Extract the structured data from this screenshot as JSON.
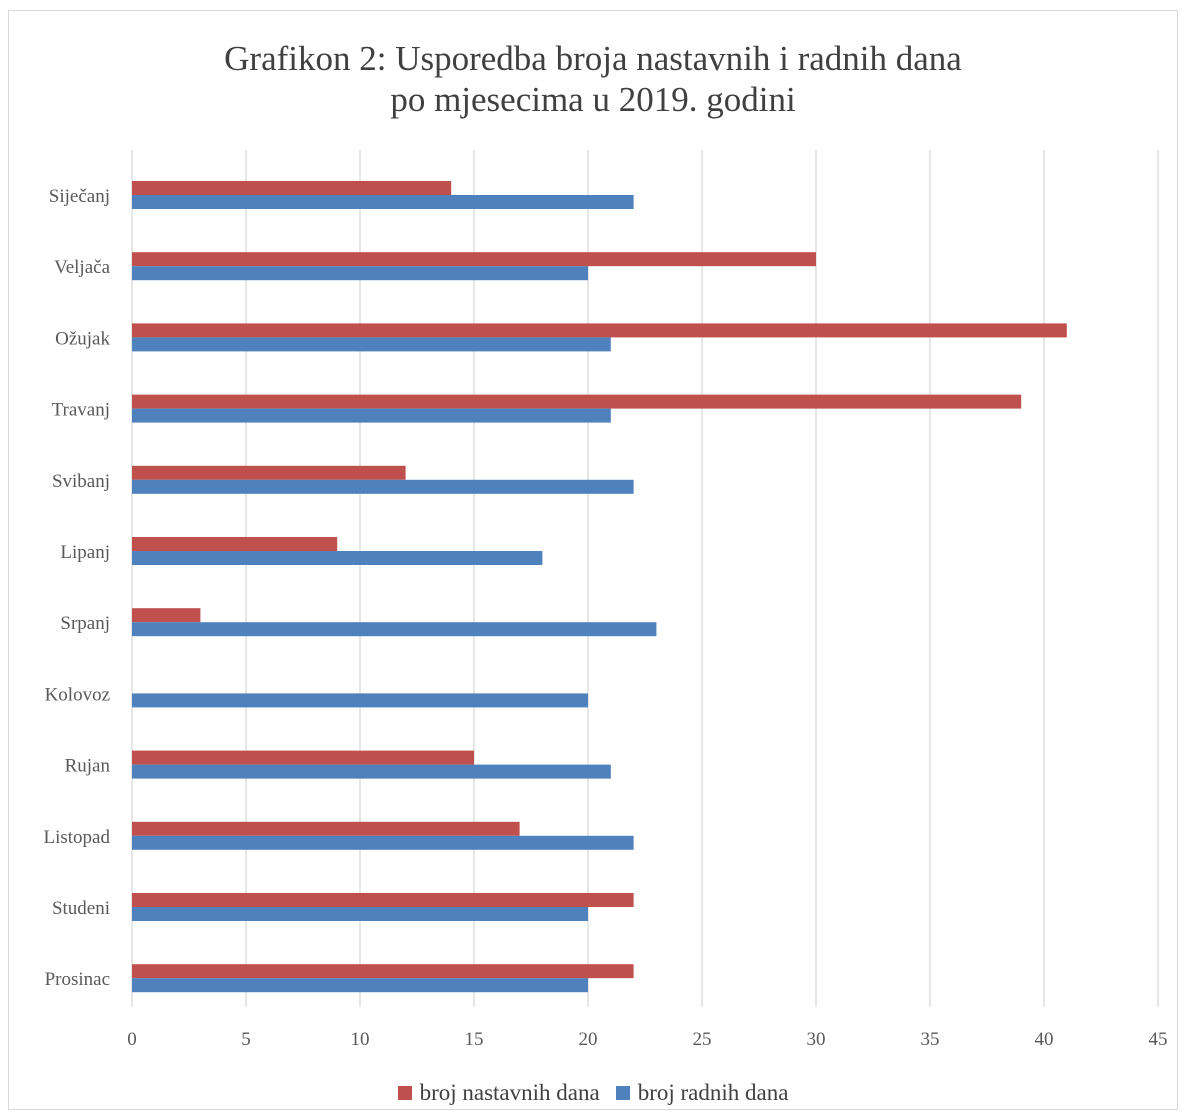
{
  "chart_data": {
    "type": "bar",
    "orientation": "horizontal",
    "title_lines": [
      "Grafikon 2: Usporedba broja nastavnih i radnih dana",
      "po mjesecima u 2019. godini"
    ],
    "categories": [
      "Siječanj",
      "Veljača",
      "Ožujak",
      "Travanj",
      "Svibanj",
      "Lipanj",
      "Srpanj",
      "Kolovoz",
      "Rujan",
      "Listopad",
      "Studeni",
      "Prosinac"
    ],
    "series": [
      {
        "name": "broj nastavnih dana",
        "color": "#c0504d",
        "values": [
          14,
          30,
          41,
          39,
          12,
          9,
          3,
          0,
          15,
          17,
          22,
          22
        ]
      },
      {
        "name": "broj radnih dana",
        "color": "#4f81bd",
        "values": [
          22,
          20,
          21,
          21,
          22,
          18,
          23,
          20,
          21,
          22,
          20,
          20
        ]
      }
    ],
    "xlim": [
      0,
      45
    ],
    "xticks": [
      "0",
      "5",
      "10",
      "15",
      "20",
      "25",
      "30",
      "35",
      "40",
      "45"
    ],
    "grid": true,
    "legend": "bottom",
    "xlabel": "",
    "ylabel": ""
  }
}
